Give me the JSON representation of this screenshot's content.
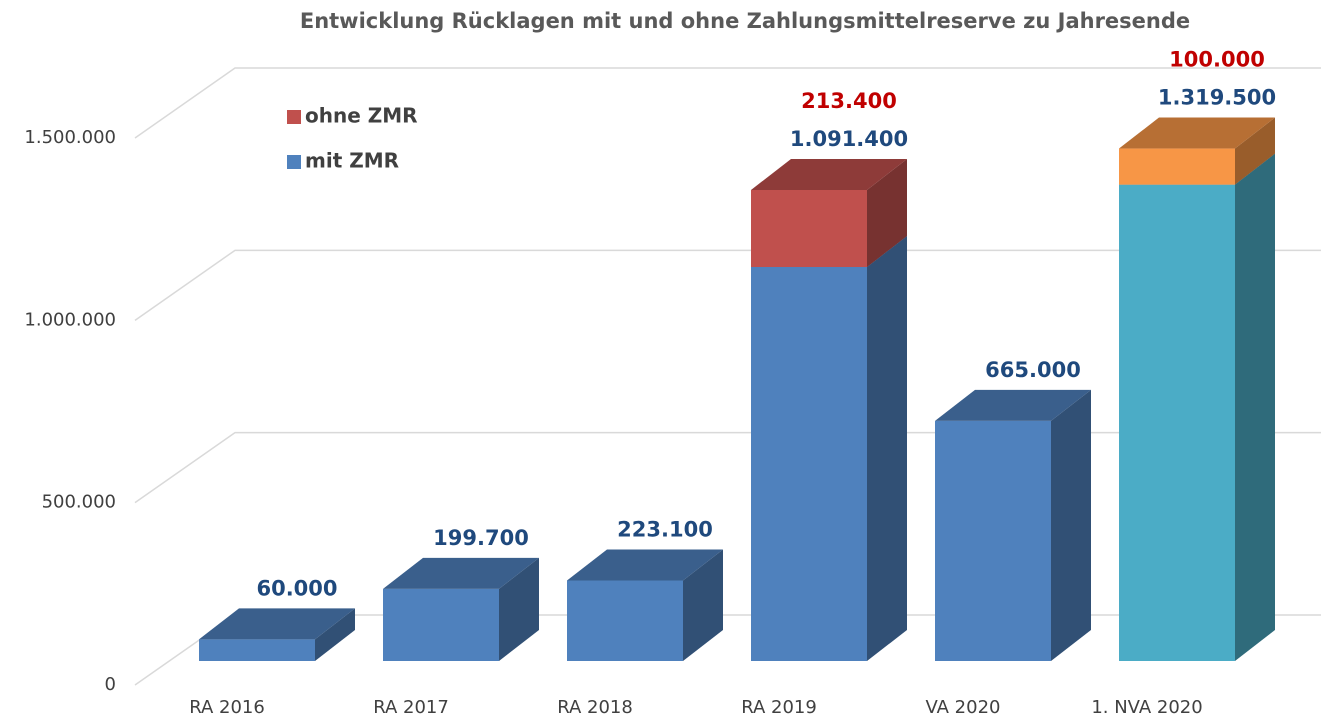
{
  "chart_data": {
    "type": "bar3d_stacked",
    "title": "Entwicklung Rücklagen mit und ohne Zahlungsmittelreserve zu Jahresende",
    "categories": [
      "RA 2016",
      "RA 2017",
      "RA 2018",
      "RA 2019",
      "VA 2020",
      "1. NVA 2020"
    ],
    "series": [
      {
        "name": "mit ZMR",
        "color": "#4f81bd",
        "label_color": "#1f497d",
        "colors": [
          "#4f81bd",
          "#4f81bd",
          "#4f81bd",
          "#4f81bd",
          "#4f81bd",
          "#4bacc6"
        ],
        "values": [
          60000,
          199700,
          223100,
          1091400,
          665000,
          1319500
        ],
        "value_labels": [
          "60.000",
          "199.700",
          "223.100",
          "1.091.400",
          "665.000",
          "1.319.500"
        ]
      },
      {
        "name": "ohne ZMR",
        "color": "#c0504d",
        "label_color": "#c00000",
        "colors": [
          "#c0504d",
          "#c0504d",
          "#c0504d",
          "#c0504d",
          "#c0504d",
          "#f79646"
        ],
        "values": [
          null,
          null,
          null,
          213400,
          null,
          100000
        ],
        "value_labels": [
          null,
          null,
          null,
          "213.400",
          null,
          "100.000"
        ]
      }
    ],
    "ylim": [
      0,
      1500000
    ],
    "yticks": [
      {
        "value": 0,
        "label": "0"
      },
      {
        "value": 500000,
        "label": "500.000"
      },
      {
        "value": 1000000,
        "label": "1.000.000"
      },
      {
        "value": 1500000,
        "label": "1.500.000"
      }
    ],
    "grid": true
  }
}
